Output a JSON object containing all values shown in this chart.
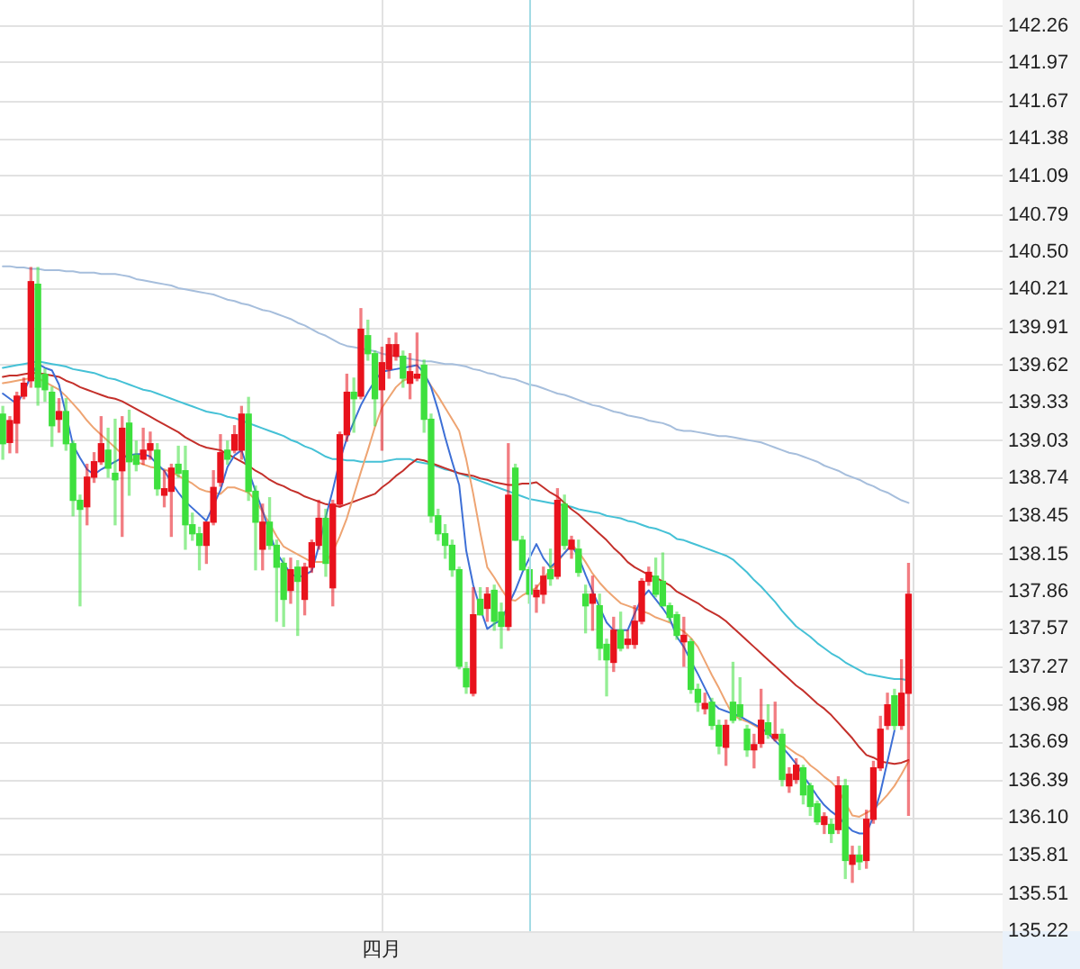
{
  "chart_data": {
    "type": "candlestick",
    "categories": [
      null,
      null,
      null,
      null,
      null,
      null,
      null,
      null,
      null,
      null,
      null,
      null,
      null,
      null,
      null,
      null,
      null,
      null,
      null,
      null,
      null,
      null,
      null,
      null,
      null,
      null,
      null,
      null,
      null,
      null,
      null,
      null,
      null,
      null,
      null,
      null,
      null,
      null,
      null,
      null,
      null,
      null,
      null,
      null,
      null,
      null,
      null,
      null,
      null,
      null,
      null,
      null,
      null,
      null,
      "四月",
      null,
      null,
      null,
      null,
      null,
      null,
      null,
      null,
      null,
      null,
      null,
      null,
      null,
      null,
      null,
      null,
      null,
      null,
      null,
      null,
      null,
      null,
      null,
      null,
      null,
      null,
      null,
      null,
      null,
      null,
      null,
      null,
      null,
      null,
      null,
      null,
      null,
      null,
      null,
      null,
      null,
      null,
      null,
      null,
      null,
      null,
      null,
      null,
      null,
      null,
      null,
      null,
      null,
      null,
      null,
      null,
      null,
      null,
      null,
      null,
      null,
      null,
      null,
      null,
      null,
      null,
      null,
      null,
      null,
      null,
      null,
      null,
      null,
      null,
      null
    ],
    "ohlc": [
      [
        139.24,
        139.3,
        138.89,
        139.01
      ],
      [
        139.02,
        139.22,
        138.94,
        139.19
      ],
      [
        139.17,
        139.41,
        138.94,
        139.38
      ],
      [
        139.38,
        139.52,
        139.36,
        139.48
      ],
      [
        139.5,
        140.38,
        139.45,
        140.27
      ],
      [
        140.25,
        140.38,
        139.31,
        139.45
      ],
      [
        139.55,
        139.59,
        139.34,
        139.43
      ],
      [
        139.41,
        139.45,
        138.99,
        139.15
      ],
      [
        139.2,
        139.36,
        139.1,
        139.26
      ],
      [
        139.26,
        139.36,
        138.96,
        139.01
      ],
      [
        139.01,
        139.03,
        138.45,
        138.57
      ],
      [
        138.57,
        138.61,
        137.75,
        138.5
      ],
      [
        138.52,
        138.85,
        138.38,
        138.75
      ],
      [
        138.75,
        138.94,
        138.71,
        138.87
      ],
      [
        138.87,
        139.22,
        138.85,
        139.01
      ],
      [
        138.96,
        139.13,
        138.75,
        138.82
      ],
      [
        138.78,
        139.2,
        138.38,
        138.73
      ],
      [
        138.8,
        139.22,
        138.29,
        139.13
      ],
      [
        139.17,
        139.27,
        138.61,
        138.87
      ],
      [
        138.92,
        139.03,
        138.8,
        138.85
      ],
      [
        138.89,
        139.13,
        138.85,
        138.96
      ],
      [
        138.96,
        139.1,
        138.89,
        139.01
      ],
      [
        138.96,
        139.01,
        138.61,
        138.66
      ],
      [
        138.61,
        138.8,
        138.52,
        138.66
      ],
      [
        138.64,
        138.85,
        138.29,
        138.82
      ],
      [
        138.85,
        138.99,
        138.75,
        138.78
      ],
      [
        138.8,
        138.99,
        138.19,
        138.38
      ],
      [
        138.38,
        138.47,
        138.26,
        138.31
      ],
      [
        138.31,
        138.36,
        138.03,
        138.22
      ],
      [
        138.22,
        138.4,
        138.08,
        138.4
      ],
      [
        138.4,
        138.8,
        138.38,
        138.67
      ],
      [
        138.71,
        139.08,
        138.68,
        138.94
      ],
      [
        138.96,
        139.03,
        138.85,
        138.89
      ],
      [
        138.96,
        139.15,
        138.94,
        139.08
      ],
      [
        138.96,
        139.3,
        138.89,
        139.24
      ],
      [
        139.24,
        139.37,
        138.57,
        138.64
      ],
      [
        138.64,
        138.68,
        138.03,
        138.4
      ],
      [
        138.19,
        138.54,
        138.03,
        138.4
      ],
      [
        138.4,
        138.59,
        138.19,
        138.22
      ],
      [
        138.22,
        138.26,
        137.63,
        138.05
      ],
      [
        138.08,
        138.12,
        137.59,
        137.8
      ],
      [
        137.87,
        138.12,
        137.77,
        138.03
      ],
      [
        138.05,
        138.1,
        137.52,
        137.94
      ],
      [
        137.8,
        138.08,
        137.68,
        138.05
      ],
      [
        138.05,
        138.26,
        138.01,
        138.24
      ],
      [
        138.22,
        138.57,
        138.19,
        138.43
      ],
      [
        138.43,
        138.5,
        137.98,
        138.08
      ],
      [
        137.89,
        138.57,
        137.75,
        138.54
      ],
      [
        138.54,
        139.1,
        138.52,
        139.08
      ],
      [
        139.08,
        139.55,
        139.03,
        139.41
      ],
      [
        139.41,
        139.52,
        139.1,
        139.36
      ],
      [
        139.38,
        140.06,
        139.36,
        139.9
      ],
      [
        139.85,
        139.97,
        139.66,
        139.71
      ],
      [
        139.71,
        139.73,
        139.15,
        139.36
      ],
      [
        139.43,
        139.76,
        138.96,
        139.64
      ],
      [
        139.59,
        139.83,
        139.52,
        139.78
      ],
      [
        139.69,
        139.87,
        139.66,
        139.78
      ],
      [
        139.69,
        139.73,
        139.45,
        139.52
      ],
      [
        139.48,
        139.71,
        139.36,
        139.57
      ],
      [
        139.52,
        139.87,
        139.5,
        139.55
      ],
      [
        139.62,
        139.66,
        139.1,
        139.2
      ],
      [
        139.2,
        139.24,
        138.4,
        138.45
      ],
      [
        138.45,
        138.5,
        138.26,
        138.31
      ],
      [
        138.31,
        138.38,
        138.12,
        138.22
      ],
      [
        138.22,
        138.26,
        137.98,
        138.03
      ],
      [
        138.03,
        138.05,
        137.26,
        137.28
      ],
      [
        137.26,
        137.31,
        137.07,
        137.12
      ],
      [
        137.07,
        137.89,
        137.05,
        137.68
      ],
      [
        137.8,
        137.89,
        137.68,
        137.68
      ],
      [
        137.73,
        137.89,
        137.63,
        137.84
      ],
      [
        137.87,
        137.91,
        137.56,
        137.63
      ],
      [
        137.7,
        137.77,
        137.42,
        137.59
      ],
      [
        137.59,
        139.01,
        137.56,
        138.61
      ],
      [
        138.82,
        138.85,
        138.26,
        138.26
      ],
      [
        138.26,
        138.29,
        138.03,
        138.03
      ],
      [
        138.03,
        138.05,
        137.77,
        137.84
      ],
      [
        137.82,
        137.91,
        137.7,
        137.87
      ],
      [
        137.84,
        138.05,
        137.77,
        137.98
      ],
      [
        138.03,
        138.19,
        137.91,
        137.96
      ],
      [
        137.98,
        138.66,
        137.96,
        138.57
      ],
      [
        138.54,
        138.61,
        138.19,
        138.22
      ],
      [
        138.19,
        138.29,
        138.12,
        138.26
      ],
      [
        138.19,
        138.26,
        137.98,
        138.01
      ],
      [
        137.84,
        137.91,
        137.54,
        137.75
      ],
      [
        137.77,
        137.98,
        137.56,
        137.84
      ],
      [
        137.75,
        137.84,
        137.33,
        137.42
      ],
      [
        137.45,
        137.49,
        137.05,
        137.33
      ],
      [
        137.31,
        137.66,
        137.24,
        137.56
      ],
      [
        137.56,
        137.7,
        137.4,
        137.42
      ],
      [
        137.45,
        137.56,
        137.42,
        137.49
      ],
      [
        137.45,
        137.75,
        137.42,
        137.63
      ],
      [
        137.63,
        137.96,
        137.61,
        137.94
      ],
      [
        137.94,
        138.05,
        137.91,
        138.01
      ],
      [
        137.98,
        138.12,
        137.82,
        137.84
      ],
      [
        137.94,
        138.16,
        137.75,
        137.75
      ],
      [
        137.75,
        137.77,
        137.63,
        137.66
      ],
      [
        137.68,
        137.7,
        137.49,
        137.52
      ],
      [
        137.47,
        137.66,
        137.28,
        137.52
      ],
      [
        137.47,
        137.49,
        137.07,
        137.1
      ],
      [
        137.1,
        137.14,
        136.93,
        137.0
      ],
      [
        136.95,
        137.07,
        136.91,
        136.99
      ],
      [
        137.0,
        137.03,
        136.79,
        136.82
      ],
      [
        136.82,
        136.86,
        136.6,
        136.66
      ],
      [
        136.65,
        136.86,
        136.51,
        136.82
      ],
      [
        137.0,
        137.31,
        136.84,
        136.86
      ],
      [
        136.98,
        137.19,
        136.86,
        136.89
      ],
      [
        136.79,
        136.82,
        136.58,
        136.63
      ],
      [
        136.63,
        136.75,
        136.49,
        136.67
      ],
      [
        136.68,
        137.1,
        136.65,
        136.86
      ],
      [
        136.84,
        136.98,
        136.72,
        136.75
      ],
      [
        136.72,
        137.0,
        136.7,
        136.75
      ],
      [
        136.75,
        136.79,
        136.35,
        136.4
      ],
      [
        136.35,
        136.49,
        136.3,
        136.44
      ],
      [
        136.4,
        136.56,
        136.37,
        136.51
      ],
      [
        136.49,
        136.51,
        136.21,
        136.28
      ],
      [
        136.35,
        136.37,
        136.12,
        136.19
      ],
      [
        136.21,
        136.23,
        136.05,
        136.07
      ],
      [
        136.05,
        136.14,
        135.98,
        136.11
      ],
      [
        136.05,
        136.09,
        135.91,
        135.98
      ],
      [
        136.01,
        136.42,
        135.98,
        136.35
      ],
      [
        136.35,
        136.4,
        135.63,
        135.77
      ],
      [
        135.74,
        135.88,
        135.6,
        135.81
      ],
      [
        135.81,
        135.88,
        135.7,
        135.76
      ],
      [
        135.77,
        136.16,
        135.71,
        136.09
      ],
      [
        136.09,
        136.54,
        136.06,
        136.49
      ],
      [
        136.49,
        136.89,
        136.47,
        136.79
      ],
      [
        136.82,
        137.07,
        136.79,
        136.98
      ],
      [
        137.05,
        137.1,
        136.79,
        136.82
      ],
      [
        136.82,
        137.33,
        136.79,
        137.07
      ],
      [
        137.07,
        138.08,
        136.12,
        137.84
      ]
    ],
    "colors": [
      "#3ee03e",
      "#e8121c",
      "#e8121c",
      "#e8121c",
      "#e8121c",
      "#3ee03e",
      "#3ee03e",
      "#3ee03e",
      "#e8121c",
      "#3ee03e",
      "#3ee03e",
      "#3ee03e",
      "#e8121c",
      "#e8121c",
      "#e8121c",
      "#3ee03e",
      "#3ee03e",
      "#e8121c",
      "#3ee03e",
      "#3ee03e",
      "#e8121c",
      "#e8121c",
      "#3ee03e",
      "#e8121c",
      "#e8121c",
      "#3ee03e",
      "#3ee03e",
      "#3ee03e",
      "#3ee03e",
      "#e8121c",
      "#e8121c",
      "#e8121c",
      "#3ee03e",
      "#e8121c",
      "#e8121c",
      "#3ee03e",
      "#3ee03e",
      "#e8121c",
      "#3ee03e",
      "#3ee03e",
      "#3ee03e",
      "#e8121c",
      "#3ee03e",
      "#e8121c",
      "#e8121c",
      "#e8121c",
      "#3ee03e",
      "#e8121c",
      "#e8121c",
      "#e8121c",
      "#3ee03e",
      "#e8121c",
      "#3ee03e",
      "#3ee03e",
      "#e8121c",
      "#e8121c",
      "#e8121c",
      "#3ee03e",
      "#e8121c",
      "#e8121c",
      "#3ee03e",
      "#3ee03e",
      "#3ee03e",
      "#3ee03e",
      "#3ee03e",
      "#3ee03e",
      "#3ee03e",
      "#e8121c",
      "#3ee03e",
      "#e8121c",
      "#3ee03e",
      "#3ee03e",
      "#e8121c",
      "#3ee03e",
      "#3ee03e",
      "#3ee03e",
      "#e8121c",
      "#e8121c",
      "#3ee03e",
      "#e8121c",
      "#3ee03e",
      "#e8121c",
      "#3ee03e",
      "#3ee03e",
      "#e8121c",
      "#3ee03e",
      "#3ee03e",
      "#e8121c",
      "#3ee03e",
      "#e8121c",
      "#e8121c",
      "#e8121c",
      "#e8121c",
      "#3ee03e",
      "#3ee03e",
      "#3ee03e",
      "#3ee03e",
      "#e8121c",
      "#3ee03e",
      "#3ee03e",
      "#e8121c",
      "#3ee03e",
      "#3ee03e",
      "#e8121c",
      "#3ee03e",
      "#3ee03e",
      "#3ee03e",
      "#e8121c",
      "#e8121c",
      "#3ee03e",
      "#e8121c",
      "#3ee03e",
      "#e8121c",
      "#e8121c",
      "#3ee03e",
      "#3ee03e",
      "#3ee03e",
      "#e8121c",
      "#3ee03e",
      "#e8121c",
      "#3ee03e",
      "#e8121c",
      "#3ee03e",
      "#e8121c",
      "#e8121c",
      "#e8121c",
      "#e8121c",
      "#3ee03e",
      "#e8121c",
      "#e8121c"
    ],
    "series": [
      {
        "type": "line",
        "color": "#3d6fd6",
        "values": [
          139.4,
          139.36,
          139.32,
          139.41,
          139.54,
          139.63,
          139.6,
          139.58,
          139.47,
          139.24,
          139.0,
          138.9,
          138.81,
          138.77,
          138.81,
          138.84,
          138.87,
          138.9,
          138.92,
          138.93,
          138.93,
          138.91,
          138.85,
          138.8,
          138.71,
          138.63,
          138.56,
          138.51,
          138.46,
          138.41,
          138.53,
          138.65,
          138.83,
          138.92,
          138.96,
          null,
          138.64,
          138.49,
          138.32,
          138.16,
          138.08,
          138.0,
          137.97,
          137.99,
          138.02,
          138.21,
          138.44,
          138.65,
          138.88,
          139.05,
          139.18,
          139.31,
          139.41,
          139.5,
          139.57,
          139.58,
          139.59,
          139.6,
          139.61,
          139.62,
          139.56,
          139.45,
          139.27,
          139.06,
          138.87,
          138.69,
          138.18,
          137.91,
          137.73,
          137.57,
          137.61,
          137.64,
          null,
          137.87,
          138.01,
          138.12,
          138.23,
          138.12,
          138.05,
          138.1,
          138.16,
          138.22,
          138.13,
          137.99,
          137.86,
          137.74,
          137.62,
          137.56,
          137.56,
          137.56,
          137.69,
          137.81,
          137.87,
          137.8,
          137.73,
          137.65,
          137.51,
          137.43,
          137.32,
          137.22,
          137.11,
          137.0,
          136.95,
          136.93,
          136.91,
          136.89,
          136.86,
          136.83,
          136.8,
          136.76,
          136.7,
          136.65,
          136.59,
          136.52,
          136.43,
          136.35,
          136.27,
          136.2,
          136.15,
          136.11,
          136.05,
          136.0,
          135.98,
          135.98,
          136.11,
          136.3,
          136.54,
          136.78,
          null,
          null
        ]
      },
      {
        "type": "line",
        "color": "#eea472",
        "values": [
          139.48,
          139.49,
          139.5,
          139.51,
          139.52,
          139.52,
          139.49,
          139.46,
          139.43,
          139.38,
          139.32,
          139.26,
          139.19,
          139.13,
          139.08,
          139.03,
          138.98,
          138.93,
          138.9,
          138.87,
          138.85,
          138.83,
          138.82,
          138.81,
          138.79,
          138.76,
          138.73,
          138.7,
          138.66,
          138.64,
          138.63,
          138.62,
          138.67,
          138.67,
          138.65,
          138.63,
          138.57,
          138.48,
          138.39,
          138.29,
          138.21,
          138.18,
          138.15,
          138.12,
          138.09,
          138.09,
          138.09,
          138.17,
          138.29,
          138.43,
          138.61,
          138.79,
          138.96,
          139.14,
          139.29,
          139.37,
          139.45,
          139.5,
          139.52,
          139.54,
          139.55,
          139.46,
          139.38,
          139.29,
          139.2,
          139.11,
          138.89,
          138.62,
          138.32,
          138.05,
          137.97,
          137.88,
          137.8,
          137.79,
          137.83,
          137.86,
          137.89,
          137.96,
          138.03,
          138.09,
          138.16,
          138.23,
          138.17,
          138.09,
          138.0,
          137.93,
          137.87,
          137.82,
          137.77,
          137.75,
          137.73,
          137.71,
          137.69,
          137.66,
          137.64,
          137.62,
          137.58,
          137.55,
          137.5,
          137.43,
          137.32,
          137.21,
          137.11,
          137.0,
          136.9,
          136.87,
          136.85,
          136.82,
          136.79,
          136.77,
          136.73,
          136.68,
          136.64,
          136.6,
          136.57,
          136.51,
          136.47,
          136.42,
          136.38,
          136.32,
          136.22,
          136.12,
          136.11,
          136.14,
          136.17,
          136.22,
          136.28,
          136.35,
          136.44,
          136.54
        ]
      },
      {
        "type": "line",
        "color": "#c4302b",
        "values": [
          139.53,
          139.54,
          139.54,
          139.55,
          139.56,
          139.56,
          139.55,
          139.54,
          139.53,
          139.5,
          139.48,
          139.45,
          139.43,
          139.41,
          139.39,
          139.37,
          139.36,
          139.34,
          139.31,
          139.28,
          139.25,
          139.22,
          139.19,
          139.16,
          139.13,
          139.1,
          139.06,
          139.03,
          139.0,
          138.98,
          138.97,
          138.96,
          138.93,
          138.9,
          138.87,
          138.84,
          138.8,
          138.77,
          138.73,
          138.7,
          138.68,
          138.65,
          138.63,
          138.6,
          138.58,
          138.56,
          138.54,
          138.53,
          138.52,
          138.54,
          138.56,
          138.58,
          138.6,
          138.62,
          138.67,
          138.71,
          138.76,
          138.8,
          138.85,
          138.89,
          138.88,
          138.86,
          138.84,
          138.82,
          138.8,
          138.78,
          138.77,
          138.76,
          138.74,
          138.73,
          138.71,
          138.7,
          138.69,
          138.69,
          138.7,
          138.7,
          138.71,
          138.67,
          138.63,
          138.6,
          138.55,
          138.5,
          138.46,
          138.41,
          138.36,
          138.31,
          138.26,
          138.2,
          138.15,
          138.09,
          138.05,
          138.02,
          137.99,
          137.97,
          137.94,
          137.91,
          137.86,
          137.83,
          137.8,
          137.77,
          137.73,
          137.7,
          137.67,
          137.63,
          137.58,
          137.53,
          137.48,
          137.43,
          137.38,
          137.33,
          137.28,
          137.23,
          137.18,
          137.13,
          137.09,
          137.04,
          136.99,
          136.95,
          136.9,
          136.84,
          136.78,
          136.72,
          136.65,
          136.59,
          136.57,
          136.54,
          136.53,
          136.52,
          136.53,
          136.55
        ]
      },
      {
        "type": "line",
        "color": "#45c1d6",
        "values": [
          139.6,
          139.61,
          139.62,
          139.63,
          139.64,
          139.65,
          139.64,
          139.63,
          139.62,
          139.61,
          139.59,
          139.58,
          139.57,
          139.56,
          139.54,
          139.52,
          139.51,
          139.49,
          139.47,
          139.45,
          139.43,
          139.42,
          139.4,
          139.38,
          139.36,
          139.34,
          139.32,
          139.3,
          139.28,
          139.26,
          139.25,
          139.24,
          139.22,
          139.21,
          139.19,
          139.17,
          139.15,
          139.13,
          139.11,
          139.09,
          139.07,
          139.04,
          139.02,
          138.99,
          138.97,
          138.94,
          138.91,
          138.89,
          138.89,
          138.88,
          138.88,
          138.87,
          138.87,
          138.87,
          138.87,
          138.88,
          138.89,
          138.89,
          138.89,
          138.87,
          138.86,
          138.85,
          138.83,
          138.81,
          138.8,
          138.78,
          138.76,
          138.74,
          138.72,
          138.7,
          138.68,
          138.66,
          138.64,
          138.62,
          138.6,
          138.58,
          138.57,
          138.56,
          138.55,
          138.54,
          138.53,
          138.52,
          138.5,
          138.49,
          138.48,
          138.47,
          138.45,
          138.44,
          138.43,
          138.41,
          138.4,
          138.38,
          138.36,
          138.35,
          138.33,
          138.31,
          138.27,
          138.26,
          138.24,
          138.22,
          138.2,
          138.18,
          138.16,
          138.14,
          138.11,
          138.06,
          138.01,
          137.95,
          137.9,
          137.84,
          137.78,
          137.71,
          137.65,
          137.59,
          137.55,
          137.51,
          137.46,
          137.42,
          137.38,
          137.35,
          137.31,
          137.28,
          137.25,
          137.22,
          137.21,
          137.2,
          137.19,
          137.18,
          137.18,
          137.17
        ]
      },
      {
        "type": "line",
        "color": "#a6bedc",
        "values": [
          140.39,
          140.39,
          140.38,
          140.38,
          140.37,
          140.37,
          140.36,
          140.36,
          140.36,
          140.35,
          140.35,
          140.34,
          140.34,
          140.34,
          140.33,
          140.33,
          140.33,
          140.32,
          140.31,
          140.29,
          140.28,
          140.27,
          140.26,
          140.25,
          140.24,
          140.22,
          140.21,
          140.2,
          140.19,
          140.18,
          140.17,
          140.15,
          140.13,
          140.12,
          140.1,
          140.09,
          140.07,
          140.05,
          140.04,
          140.02,
          140.0,
          139.98,
          139.95,
          139.93,
          139.9,
          139.87,
          139.85,
          139.82,
          139.79,
          139.77,
          139.76,
          139.75,
          139.74,
          139.73,
          139.71,
          139.7,
          139.69,
          139.68,
          139.67,
          139.66,
          139.65,
          139.65,
          139.64,
          139.63,
          139.63,
          139.62,
          139.61,
          139.59,
          139.58,
          139.56,
          139.55,
          139.53,
          139.52,
          139.51,
          139.49,
          139.47,
          139.46,
          139.44,
          139.42,
          139.4,
          139.39,
          139.37,
          139.35,
          139.33,
          139.31,
          139.3,
          139.28,
          139.26,
          139.25,
          139.23,
          139.22,
          139.21,
          139.19,
          139.18,
          139.17,
          139.15,
          139.12,
          139.11,
          139.11,
          139.1,
          139.09,
          139.08,
          139.07,
          139.07,
          139.06,
          139.05,
          139.04,
          139.03,
          139.02,
          139.0,
          138.98,
          138.96,
          138.94,
          138.93,
          138.91,
          138.89,
          138.87,
          138.84,
          138.82,
          138.8,
          138.77,
          138.75,
          138.73,
          138.7,
          138.68,
          138.65,
          138.63,
          138.6,
          138.57,
          138.55
        ]
      }
    ],
    "ylim": [
      135.22,
      142.46
    ],
    "yticks": [
      142.26,
      141.97,
      141.67,
      141.38,
      141.09,
      140.79,
      {
        "value": 140.5,
        "label": "140.50"
      },
      140.21,
      139.91,
      139.62,
      139.33,
      139.03,
      138.74,
      138.45,
      138.15,
      137.86,
      137.57,
      137.27,
      136.98,
      136.69,
      136.39,
      {
        "value": 136.1,
        "label": "136.10"
      },
      135.81,
      135.51,
      135.22
    ],
    "grid": true
  }
}
